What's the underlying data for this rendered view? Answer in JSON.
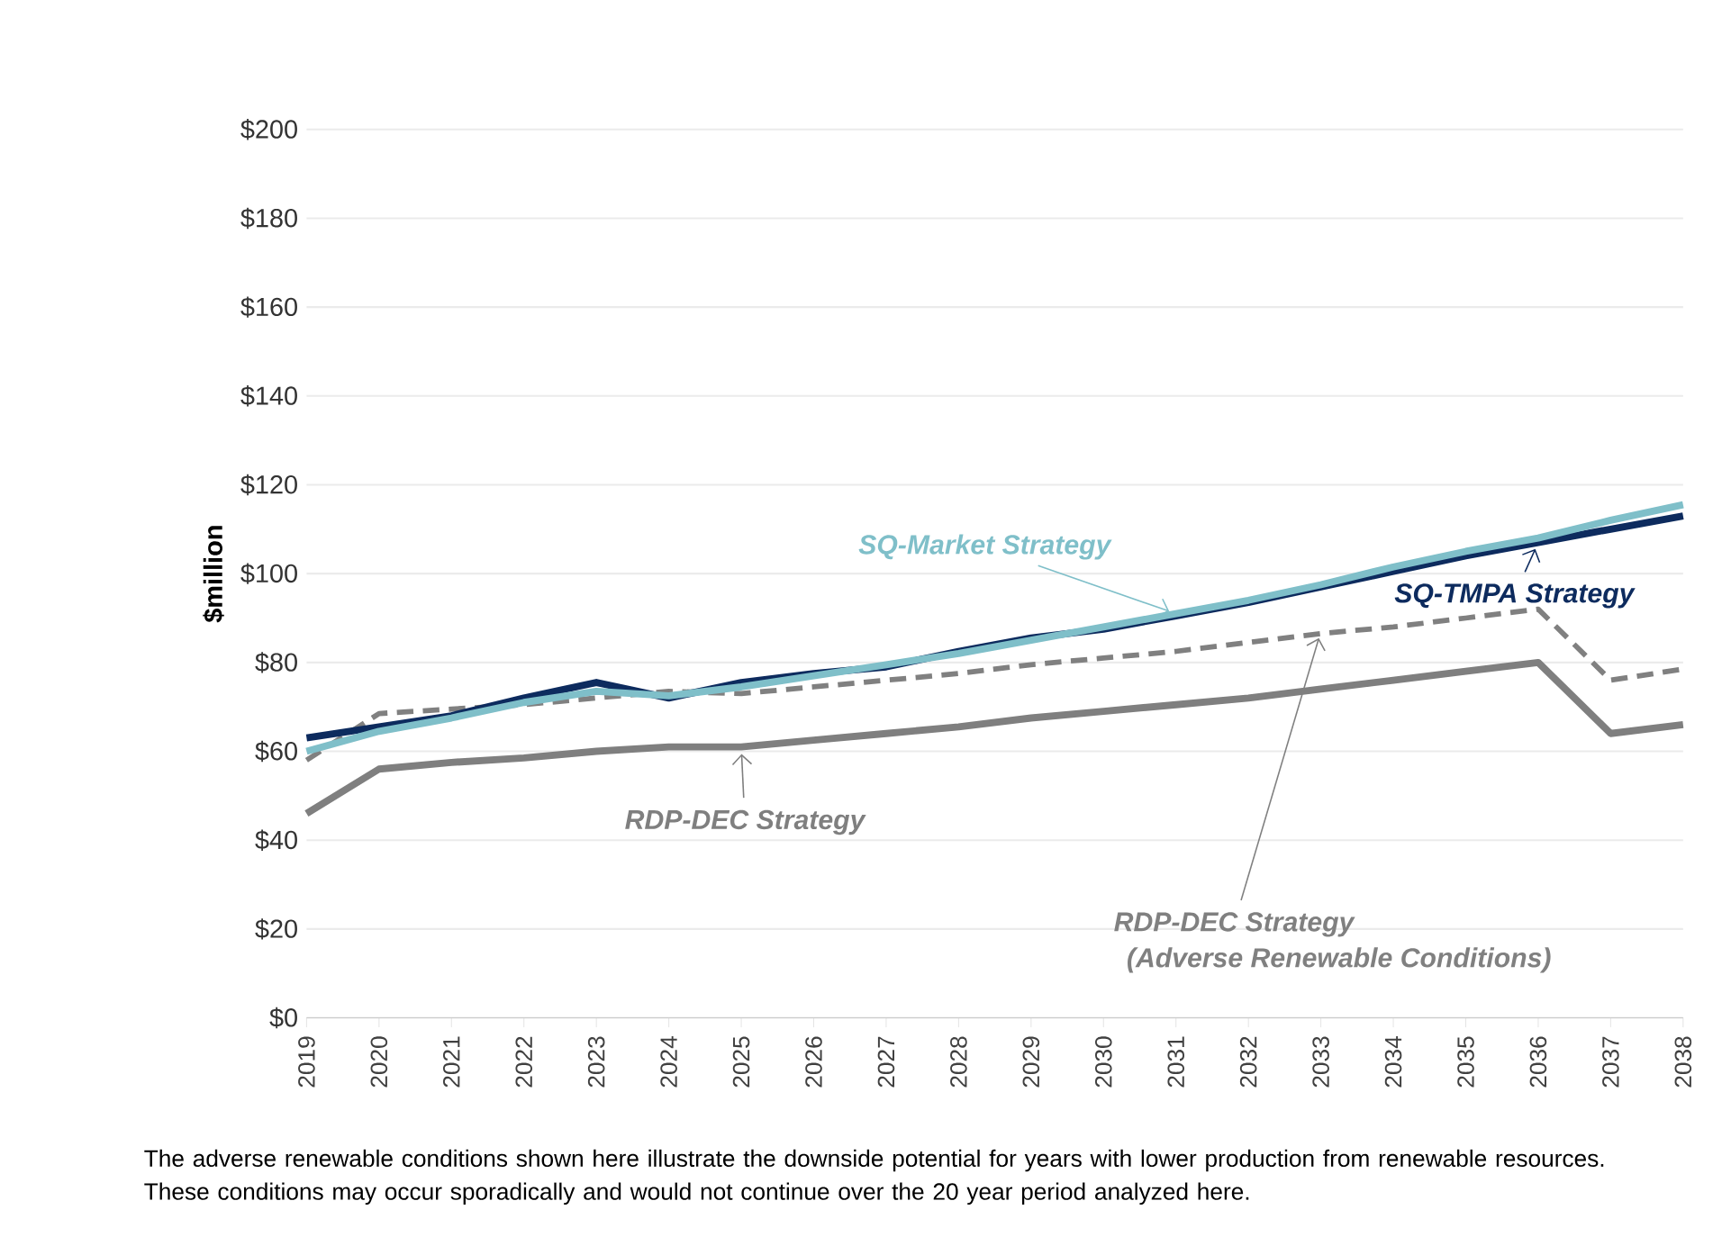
{
  "chart_data": {
    "type": "line",
    "ylabel": "$million",
    "categories": [
      "2019",
      "2020",
      "2021",
      "2022",
      "2023",
      "2024",
      "2025",
      "2026",
      "2027",
      "2028",
      "2029",
      "2030",
      "2031",
      "2032",
      "2033",
      "2034",
      "2035",
      "2036",
      "2037",
      "2038"
    ],
    "series": [
      {
        "color": "#0d2b5e",
        "values": [
          63,
          65.5,
          68,
          72,
          75.5,
          72,
          75.5,
          77.5,
          79,
          82.5,
          85.5,
          87.5,
          90.5,
          93.5,
          97,
          100.5,
          104,
          107,
          110,
          113
        ]
      },
      {
        "color": "#7fbfc9",
        "values": [
          60,
          64.5,
          67.5,
          71,
          73.5,
          72.5,
          74.5,
          77,
          79.5,
          82,
          85,
          88,
          91,
          94,
          97.5,
          101.5,
          105,
          108,
          112,
          115.5
        ]
      },
      {
        "color": "#7f7f7f",
        "values": [
          46,
          56,
          57.5,
          58.5,
          60,
          61,
          61,
          62.5,
          64,
          65.5,
          67.5,
          69,
          70.5,
          72,
          74,
          76,
          78,
          80,
          64,
          66
        ]
      },
      {
        "color": "#808080",
        "line_style": "dashed",
        "values": [
          58,
          68.5,
          69.5,
          70.5,
          72,
          73.5,
          73,
          74.5,
          76,
          77.5,
          79.5,
          81,
          82.5,
          84.5,
          86.5,
          88,
          90,
          92,
          76,
          78.5
        ]
      }
    ],
    "ylim": [
      0,
      200
    ],
    "yticks": [
      {
        "value": 0,
        "label": "$0"
      },
      {
        "value": 20,
        "label": "$20"
      },
      {
        "value": 40,
        "label": "$40"
      },
      {
        "value": 60,
        "label": "$60"
      },
      {
        "value": 80,
        "label": "$80"
      },
      {
        "value": 100,
        "label": "$100"
      },
      {
        "value": 120,
        "label": "$120"
      },
      {
        "value": 140,
        "label": "$140"
      },
      {
        "value": 160,
        "label": "$160"
      },
      {
        "value": 180,
        "label": "$180"
      },
      {
        "value": 200,
        "label": "$200"
      }
    ],
    "grid": "y",
    "line_style": "solid",
    "marker": "none",
    "annotations": [
      {
        "text": "SQ-Market Strategy",
        "x": "2031",
        "y": 91
      },
      {
        "text": "SQ-TMPA Strategy",
        "x": "2036",
        "y": 107
      },
      {
        "text": "RDP-DEC Strategy",
        "x": "2025",
        "y": 61
      },
      {
        "text": "RDP-DEC Strategy",
        "x": "2033",
        "y": 87
      },
      "(Adverse Renewable Conditions)",
      "The adverse renewable conditions shown here illustrate the downside potential for years with lower production from renewable resources. These conditions may occur sporadically and would not continue over the 20 year period analyzed here."
    ]
  }
}
